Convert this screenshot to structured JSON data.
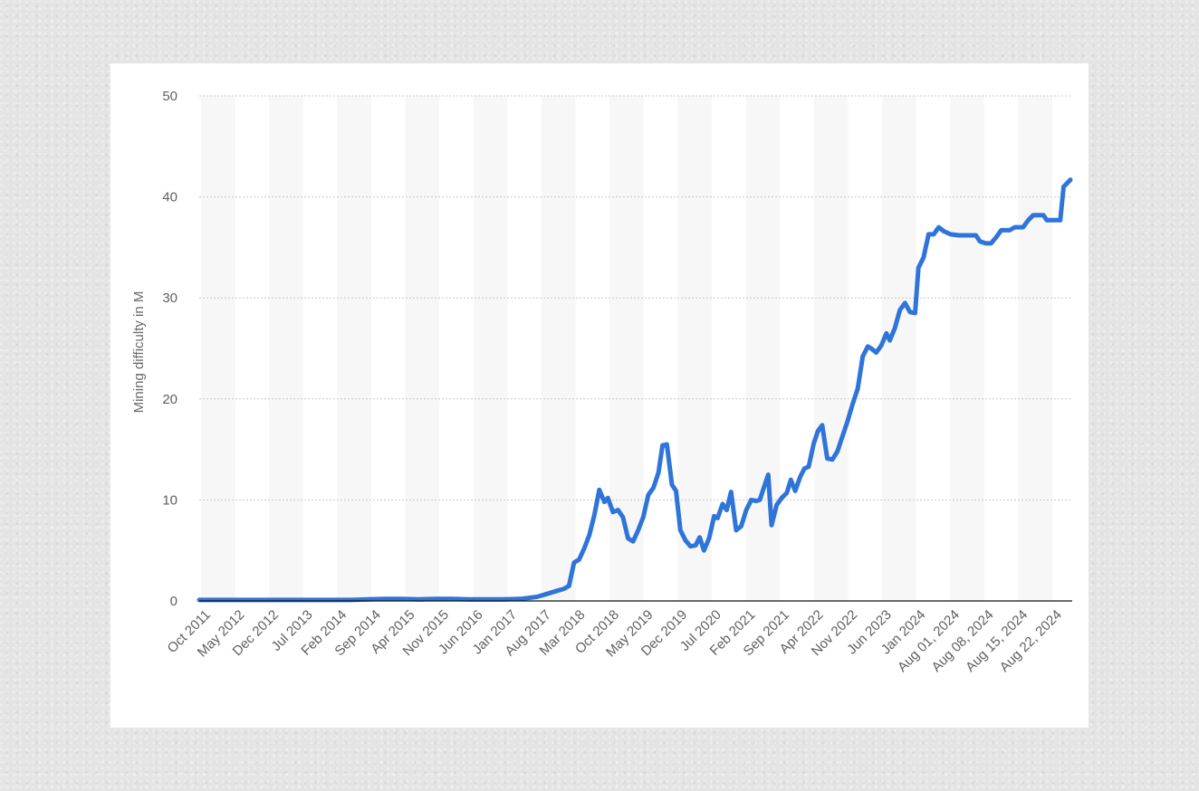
{
  "chart_data": {
    "type": "line",
    "title": "",
    "xlabel": "",
    "ylabel": "Mining difficulty in M",
    "ylim": [
      0,
      50
    ],
    "y_ticks": [
      0,
      10,
      20,
      30,
      40,
      50
    ],
    "grid": true,
    "legend": "none",
    "x_tick_labels": [
      "Oct 2011",
      "May 2012",
      "Dec 2012",
      "Jul 2013",
      "Feb 2014",
      "Sep 2014",
      "Apr 2015",
      "Nov 2015",
      "Jun 2016",
      "Jan 2017",
      "Aug 2017",
      "Mar 2018",
      "Oct 2018",
      "May 2019",
      "Dec 2019",
      "Jul 2020",
      "Feb 2021",
      "Sep 2021",
      "Apr 2022",
      "Nov 2022",
      "Jun 2023",
      "Jan 2024",
      "Aug 01, 2024",
      "Aug 08, 2024",
      "Aug 15, 2024",
      "Aug 22, 2024"
    ],
    "series": [
      {
        "name": "",
        "color": "#2f74d9",
        "points": [
          [
            0.0,
            0.1
          ],
          [
            0.5,
            0.1
          ],
          [
            1.0,
            0.1
          ],
          [
            1.5,
            0.1
          ],
          [
            2.0,
            0.1
          ],
          [
            2.5,
            0.1
          ],
          [
            3.0,
            0.1
          ],
          [
            3.5,
            0.1
          ],
          [
            4.0,
            0.1
          ],
          [
            4.5,
            0.1
          ],
          [
            5.0,
            0.15
          ],
          [
            5.5,
            0.2
          ],
          [
            6.0,
            0.2
          ],
          [
            6.5,
            0.15
          ],
          [
            7.0,
            0.2
          ],
          [
            7.5,
            0.2
          ],
          [
            8.0,
            0.15
          ],
          [
            8.5,
            0.15
          ],
          [
            9.0,
            0.15
          ],
          [
            9.5,
            0.2
          ],
          [
            10.0,
            0.4
          ],
          [
            10.3,
            0.7
          ],
          [
            10.6,
            1.0
          ],
          [
            10.8,
            1.2
          ],
          [
            10.95,
            1.5
          ],
          [
            11.1,
            3.8
          ],
          [
            11.25,
            4.1
          ],
          [
            11.4,
            5.2
          ],
          [
            11.55,
            6.5
          ],
          [
            11.7,
            8.5
          ],
          [
            11.85,
            11.0
          ],
          [
            12.0,
            9.8
          ],
          [
            12.1,
            10.2
          ],
          [
            12.25,
            8.8
          ],
          [
            12.4,
            9.0
          ],
          [
            12.55,
            8.3
          ],
          [
            12.7,
            6.2
          ],
          [
            12.85,
            5.9
          ],
          [
            13.0,
            7.0
          ],
          [
            13.15,
            8.3
          ],
          [
            13.3,
            10.5
          ],
          [
            13.45,
            11.2
          ],
          [
            13.6,
            12.7
          ],
          [
            13.72,
            15.4
          ],
          [
            13.85,
            15.5
          ],
          [
            14.0,
            11.5
          ],
          [
            14.12,
            10.9
          ],
          [
            14.25,
            7.0
          ],
          [
            14.4,
            6.0
          ],
          [
            14.55,
            5.4
          ],
          [
            14.7,
            5.5
          ],
          [
            14.82,
            6.3
          ],
          [
            14.95,
            5.0
          ],
          [
            15.1,
            6.2
          ],
          [
            15.25,
            8.4
          ],
          [
            15.35,
            8.2
          ],
          [
            15.5,
            9.6
          ],
          [
            15.62,
            9.0
          ],
          [
            15.75,
            10.8
          ],
          [
            15.9,
            7.0
          ],
          [
            16.05,
            7.4
          ],
          [
            16.2,
            9.0
          ],
          [
            16.35,
            10.0
          ],
          [
            16.5,
            9.9
          ],
          [
            16.6,
            10.0
          ],
          [
            16.7,
            11.0
          ],
          [
            16.85,
            12.5
          ],
          [
            16.95,
            7.5
          ],
          [
            17.1,
            9.5
          ],
          [
            17.25,
            10.2
          ],
          [
            17.4,
            10.7
          ],
          [
            17.52,
            12.0
          ],
          [
            17.65,
            10.9
          ],
          [
            17.8,
            12.3
          ],
          [
            17.92,
            13.1
          ],
          [
            18.05,
            13.3
          ],
          [
            18.2,
            15.6
          ],
          [
            18.32,
            16.8
          ],
          [
            18.45,
            17.4
          ],
          [
            18.6,
            14.1
          ],
          [
            18.75,
            14.0
          ],
          [
            18.9,
            14.8
          ],
          [
            19.05,
            16.3
          ],
          [
            19.2,
            17.8
          ],
          [
            19.35,
            19.5
          ],
          [
            19.5,
            21.0
          ],
          [
            19.65,
            24.2
          ],
          [
            19.8,
            25.2
          ],
          [
            19.9,
            25.0
          ],
          [
            20.05,
            24.6
          ],
          [
            20.2,
            25.3
          ],
          [
            20.35,
            26.5
          ],
          [
            20.45,
            25.8
          ],
          [
            20.6,
            27.0
          ],
          [
            20.75,
            28.8
          ],
          [
            20.9,
            29.5
          ],
          [
            21.05,
            28.6
          ],
          [
            21.2,
            28.5
          ],
          [
            21.3,
            33.0
          ],
          [
            21.45,
            34.0
          ],
          [
            21.6,
            36.3
          ],
          [
            21.75,
            36.3
          ],
          [
            21.9,
            37.0
          ],
          [
            22.05,
            36.6
          ],
          [
            22.25,
            36.3
          ],
          [
            22.5,
            36.2
          ],
          [
            22.75,
            36.2
          ],
          [
            23.0,
            36.2
          ],
          [
            23.12,
            35.6
          ],
          [
            23.3,
            35.4
          ],
          [
            23.45,
            35.4
          ],
          [
            23.6,
            36.0
          ],
          [
            23.75,
            36.7
          ],
          [
            24.0,
            36.7
          ],
          [
            24.15,
            37.0
          ],
          [
            24.4,
            37.0
          ],
          [
            24.55,
            37.7
          ],
          [
            24.7,
            38.2
          ],
          [
            25.0,
            38.2
          ],
          [
            25.1,
            37.7
          ],
          [
            25.5,
            37.7
          ],
          [
            25.6,
            41.0
          ],
          [
            25.8,
            41.7
          ]
        ]
      }
    ]
  }
}
